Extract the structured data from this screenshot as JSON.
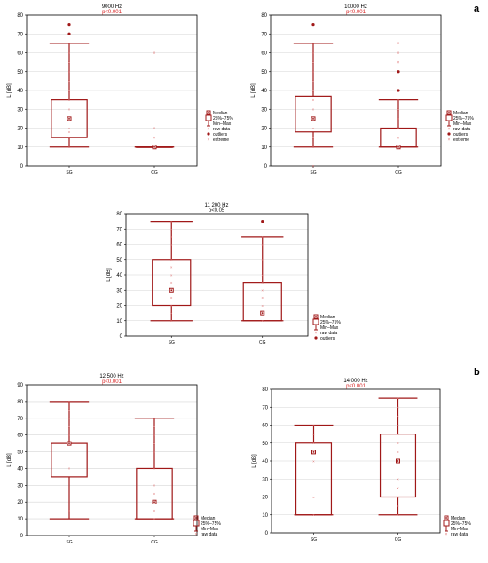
{
  "panel_labels": [
    "a",
    "b"
  ],
  "colors": {
    "box": "#a01818",
    "raw": "#e07a7a",
    "pvalue_sig": "#d62020",
    "pvalue_ns": "#222222",
    "grid": "#d6d6d6",
    "axis": "#000000"
  },
  "chart_data": [
    {
      "type": "box",
      "title": "9000 Hz",
      "subtitle": "p<0.001",
      "subtitle_significant": true,
      "ylabel": "L [dB]",
      "ylim": [
        0,
        80
      ],
      "yticks": [
        0,
        10,
        20,
        30,
        40,
        50,
        60,
        70,
        80
      ],
      "categories": [
        "SG",
        "CG"
      ],
      "groups": [
        {
          "name": "SG",
          "min": 10,
          "q1": 15,
          "median": 25,
          "q3": 35,
          "max": 65,
          "raw": [
            10,
            15,
            18,
            20,
            25,
            30,
            35,
            40,
            45,
            50,
            55,
            60,
            65
          ],
          "outliers": [
            70,
            75
          ],
          "extremes": []
        },
        {
          "name": "CG",
          "min": 10,
          "q1": 10,
          "median": 10,
          "q3": 10,
          "max": 10,
          "raw": [
            10
          ],
          "outliers": [],
          "extremes": [
            15,
            20,
            60
          ]
        }
      ],
      "legend": [
        "Median",
        "25%–75%",
        "Min–Max",
        "raw data",
        "outliers",
        "extreme"
      ],
      "legend_position": "bottom-right"
    },
    {
      "type": "box",
      "title": "10000 Hz",
      "subtitle": "p<0.001",
      "subtitle_significant": true,
      "ylabel": "L [dB]",
      "ylim": [
        0,
        80
      ],
      "yticks": [
        0,
        10,
        20,
        30,
        40,
        50,
        60,
        70,
        80
      ],
      "categories": [
        "SG",
        "CG"
      ],
      "groups": [
        {
          "name": "SG",
          "min": 10,
          "q1": 18,
          "median": 25,
          "q3": 37,
          "max": 65,
          "raw": [
            10,
            15,
            20,
            25,
            30,
            35,
            40,
            45,
            50,
            55,
            60,
            65
          ],
          "outliers": [
            75
          ],
          "extremes": [
            0
          ]
        },
        {
          "name": "CG",
          "min": 10,
          "q1": 10,
          "median": 10,
          "q3": 20,
          "max": 35,
          "raw": [
            10,
            15,
            20,
            25,
            30,
            35
          ],
          "outliers": [
            40,
            50
          ],
          "extremes": [
            55,
            60,
            65
          ]
        }
      ],
      "legend": [
        "Median",
        "25%–75%",
        "Min–Max",
        "raw data",
        "outliers",
        "extreme"
      ],
      "legend_position": "bottom-right"
    },
    {
      "type": "box",
      "title": "11 200 Hz",
      "subtitle": "p<0.05",
      "subtitle_significant": false,
      "ylabel": "L [dB]",
      "ylim": [
        0,
        80
      ],
      "yticks": [
        0,
        10,
        20,
        30,
        40,
        50,
        60,
        70,
        80
      ],
      "categories": [
        "SG",
        "CG"
      ],
      "groups": [
        {
          "name": "SG",
          "min": 10,
          "q1": 20,
          "median": 30,
          "q3": 50,
          "max": 75,
          "raw": [
            10,
            15,
            20,
            25,
            30,
            35,
            40,
            45,
            50,
            60,
            65,
            70,
            75
          ],
          "outliers": [],
          "extremes": []
        },
        {
          "name": "CG",
          "min": 10,
          "q1": 10,
          "median": 15,
          "q3": 35,
          "max": 65,
          "raw": [
            10,
            15,
            20,
            25,
            30,
            35,
            40,
            50,
            60,
            65
          ],
          "outliers": [
            75
          ],
          "extremes": []
        }
      ],
      "legend": [
        "Median",
        "25%–75%",
        "Min–Max",
        "raw data",
        "outliers"
      ],
      "legend_position": "bottom-right"
    },
    {
      "type": "box",
      "title": "12 500 Hz",
      "subtitle": "p<0.001",
      "subtitle_significant": true,
      "ylabel": "L [dB]",
      "ylim": [
        0,
        90
      ],
      "yticks": [
        0,
        10,
        20,
        30,
        40,
        50,
        60,
        70,
        80,
        90
      ],
      "categories": [
        "SG",
        "CG"
      ],
      "groups": [
        {
          "name": "SG",
          "min": 10,
          "q1": 35,
          "median": 55,
          "q3": 55,
          "max": 80,
          "raw": [
            15,
            40,
            55,
            60,
            65,
            70,
            75,
            80
          ],
          "outliers": [],
          "extremes": []
        },
        {
          "name": "CG",
          "min": 10,
          "q1": 10,
          "median": 20,
          "q3": 40,
          "max": 70,
          "raw": [
            10,
            15,
            20,
            25,
            30,
            40,
            50,
            55,
            60,
            65,
            70
          ],
          "outliers": [],
          "extremes": []
        }
      ],
      "legend": [
        "Median",
        "25%–75%",
        "Min–Max",
        "raw data"
      ],
      "legend_position": "bottom-right"
    },
    {
      "type": "box",
      "title": "14 000 Hz",
      "subtitle": "p<0.001",
      "subtitle_significant": true,
      "ylabel": "L [dB]",
      "ylim": [
        0,
        80
      ],
      "yticks": [
        0,
        10,
        20,
        30,
        40,
        50,
        60,
        70,
        80
      ],
      "categories": [
        "SG",
        "CG"
      ],
      "groups": [
        {
          "name": "SG",
          "min": 10,
          "q1": 10,
          "median": 45,
          "q3": 50,
          "max": 60,
          "raw": [
            10,
            20,
            40,
            45,
            50,
            55,
            60
          ],
          "outliers": [],
          "extremes": []
        },
        {
          "name": "CG",
          "min": 10,
          "q1": 20,
          "median": 40,
          "q3": 55,
          "max": 75,
          "raw": [
            10,
            15,
            20,
            25,
            30,
            40,
            45,
            50,
            55,
            60,
            65,
            70,
            75
          ],
          "outliers": [],
          "extremes": []
        }
      ],
      "legend": [
        "Median",
        "25%–75%",
        "Min–Max",
        "raw data"
      ],
      "legend_position": "bottom-right"
    }
  ]
}
